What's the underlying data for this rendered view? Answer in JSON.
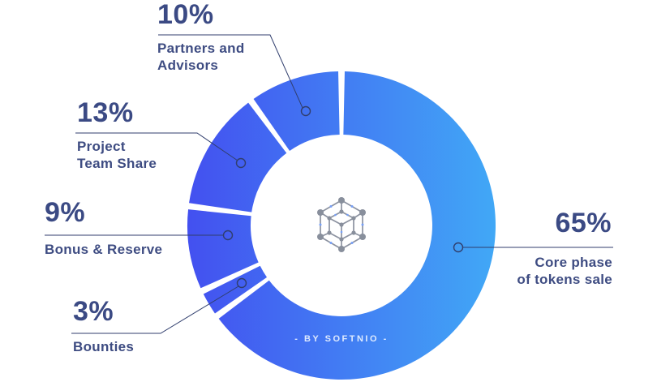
{
  "page": {
    "background": "#ffffff"
  },
  "branding": {
    "credit": "- BY SOFTNIO -"
  },
  "chart_data": {
    "type": "pie",
    "variant": "donut",
    "title": "",
    "legend_position": "callout-labels",
    "start_angle_deg": 0,
    "direction": "clockwise",
    "gradient": {
      "left": "#4350f0",
      "right": "#41a8f6"
    },
    "line_color": "#303e6d",
    "label_color": "#3b4a84",
    "center_icon": "hexagon-network-icon",
    "credit": "- BY SOFTNIO -",
    "slices": [
      {
        "id": "core-phase-of-tokens-sale",
        "percent": 65,
        "percent_label": "65%",
        "label": "Core phase\nof tokens sale"
      },
      {
        "id": "bounties",
        "percent": 3,
        "percent_label": "3%",
        "label": "Bounties"
      },
      {
        "id": "bonus-reserve",
        "percent": 9,
        "percent_label": "9%",
        "label": "Bonus & Reserve"
      },
      {
        "id": "project-team-share",
        "percent": 13,
        "percent_label": "13%",
        "label": "Project\nTeam Share"
      },
      {
        "id": "partners-and-advisors",
        "percent": 10,
        "percent_label": "10%",
        "label": "Partners and\nAdvisors"
      }
    ]
  }
}
